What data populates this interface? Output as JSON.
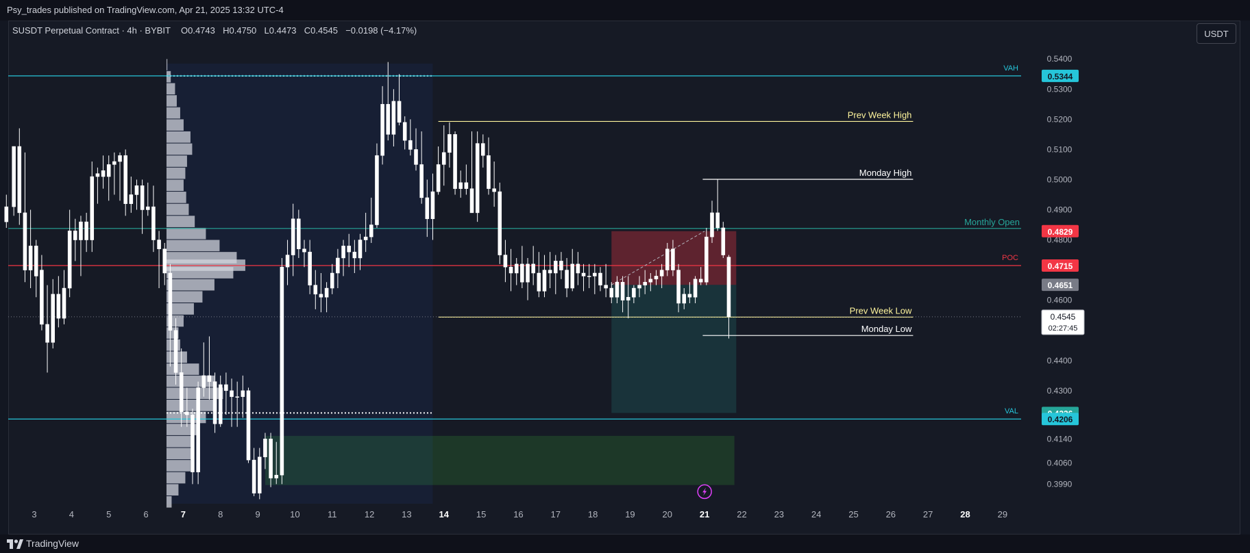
{
  "header": {
    "publish_line": "Psy_trades published on TradingView.com, Apr 21, 2025 13:32 UTC-4"
  },
  "legend": {
    "symbol": "SUSDT Perpetual Contract · 4h · BYBIT",
    "o_label": "O",
    "o_value": "0.4743",
    "h_label": "H",
    "h_value": "0.4750",
    "l_label": "L",
    "l_value": "0.4473",
    "c_label": "C",
    "c_value": "0.4545",
    "change": "−0.0198 (−4.17%)"
  },
  "toolbar": {
    "unit_label": "USDT"
  },
  "footer": {
    "brand": "TradingView"
  },
  "colors": {
    "background": "#161a25",
    "candle_up": "#ffffff",
    "candle_down": "#ffffff",
    "value_area_line": "#26c6da",
    "poc_line": "#f23645",
    "monthly_open_line": "#26a69a",
    "prev_week_line": "#fff59d",
    "stop_zone": "#f23645",
    "target_zone": "#26a69a",
    "demand_zone": "#2e7d32"
  },
  "chart_data": {
    "type": "candlestick",
    "symbol": "SUSDT Perpetual Contract",
    "timeframe": "4h",
    "exchange": "BYBIT",
    "y_axis": {
      "ticks": [
        "0.5400",
        "0.5300",
        "0.5200",
        "0.5100",
        "0.5000",
        "0.4900",
        "0.4800",
        "0.4600",
        "0.4400",
        "0.4300",
        "0.4140",
        "0.4060",
        "0.3990"
      ],
      "range": [
        0.3925,
        0.5455
      ]
    },
    "x_axis": {
      "ticks": [
        "3",
        "4",
        "5",
        "6",
        "7",
        "8",
        "9",
        "10",
        "11",
        "12",
        "13",
        "14",
        "15",
        "16",
        "17",
        "18",
        "19",
        "20",
        "21",
        "22",
        "23",
        "24",
        "25",
        "26",
        "27",
        "28",
        "29"
      ],
      "bold_ticks": [
        "7",
        "14",
        "21",
        "28"
      ],
      "range": [
        2.3,
        29.5
      ]
    },
    "price_labels": [
      {
        "value": "0.5344",
        "color": "#26c6da",
        "text_color": "#131722"
      },
      {
        "value": "0.4829",
        "color": "#f23645",
        "text_color": "#ffffff"
      },
      {
        "value": "0.4715",
        "color": "#f23645",
        "text_color": "#ffffff"
      },
      {
        "value": "0.4651",
        "color": "#787b86",
        "text_color": "#ffffff"
      },
      {
        "value": "0.4226",
        "color": "#26a69a",
        "text_color": "#ffffff"
      },
      {
        "value": "0.4206",
        "color": "#26c6da",
        "text_color": "#131722"
      }
    ],
    "last_price": {
      "value": "0.4545",
      "countdown": "02:27:45",
      "numeric": 0.4545
    },
    "levels": [
      {
        "name": "VAH",
        "price": 0.5344,
        "label": "VAH",
        "color": "#26c6da",
        "style": "solid",
        "x_from": 2.3,
        "x_to": 29.5,
        "label_side": "axis"
      },
      {
        "name": "VAL",
        "price": 0.4206,
        "label": "VAL",
        "color": "#26c6da",
        "style": "solid",
        "x_from": 2.3,
        "x_to": 29.5,
        "label_side": "axis"
      },
      {
        "name": "POC",
        "price": 0.4715,
        "label": "POC",
        "color": "#f23645",
        "style": "solid",
        "x_from": 2.3,
        "x_to": 29.5,
        "label_side": "axis"
      },
      {
        "name": "Monthly Open",
        "price": 0.4838,
        "label": "Monthly Open",
        "color": "#26a69a",
        "style": "solid",
        "x_from": 2.3,
        "x_to": 29.5,
        "label_side": "text"
      },
      {
        "name": "Prev Week High",
        "price": 0.5193,
        "label": "Prev Week High",
        "color": "#fff59d",
        "style": "solid",
        "x_from": 13.85,
        "x_to": 26.6,
        "label_side": "text"
      },
      {
        "name": "Prev Week Low",
        "price": 0.4544,
        "label": "Prev Week Low",
        "color": "#fff59d",
        "style": "solid",
        "x_from": 13.85,
        "x_to": 26.6,
        "label_side": "text"
      },
      {
        "name": "Monday High",
        "price": 0.5001,
        "label": "Monday High",
        "color": "#ffffff",
        "style": "solid",
        "x_from": 20.95,
        "x_to": 26.6,
        "label_side": "text"
      },
      {
        "name": "Monday Low",
        "price": 0.4483,
        "label": "Monday Low",
        "color": "#ffffff",
        "style": "solid",
        "x_from": 20.95,
        "x_to": 26.6,
        "label_side": "text"
      },
      {
        "name": "Last",
        "price": 0.4545,
        "label": "",
        "color": "#787b86",
        "style": "dotted",
        "x_from": 2.3,
        "x_to": 29.5,
        "label_side": "none"
      }
    ],
    "zones": [
      {
        "name": "stop",
        "from_x": 18.5,
        "to_x": 21.85,
        "from_y": 0.4651,
        "to_y": 0.4829,
        "color": "#f23645",
        "opacity": 0.33
      },
      {
        "name": "target",
        "from_x": 18.5,
        "to_x": 21.85,
        "from_y": 0.4226,
        "to_y": 0.4651,
        "color": "#26a69a",
        "opacity": 0.18
      },
      {
        "name": "demand",
        "from_x": 9.2,
        "to_x": 21.8,
        "from_y": 0.3987,
        "to_y": 0.415,
        "color": "#2e7d32",
        "opacity": 0.3
      },
      {
        "name": "volume-profile-range",
        "from_x": 6.55,
        "to_x": 13.7,
        "from_y": 0.3925,
        "to_y": 0.5385,
        "color": "#2962ff",
        "opacity": 0.07
      }
    ],
    "candles": [
      [
        2.25,
        0.486,
        0.495,
        0.484,
        0.491
      ],
      [
        2.45,
        0.491,
        0.511,
        0.488,
        0.511
      ],
      [
        2.6,
        0.511,
        0.517,
        0.485,
        0.489
      ],
      [
        2.75,
        0.489,
        0.509,
        0.466,
        0.47
      ],
      [
        2.9,
        0.47,
        0.49,
        0.464,
        0.478
      ],
      [
        3.05,
        0.478,
        0.48,
        0.461,
        0.468
      ],
      [
        3.2,
        0.47,
        0.475,
        0.45,
        0.452
      ],
      [
        3.35,
        0.452,
        0.465,
        0.436,
        0.446
      ],
      [
        3.5,
        0.446,
        0.467,
        0.444,
        0.462
      ],
      [
        3.65,
        0.462,
        0.468,
        0.451,
        0.454
      ],
      [
        3.8,
        0.454,
        0.47,
        0.452,
        0.464
      ],
      [
        3.95,
        0.464,
        0.49,
        0.461,
        0.483
      ],
      [
        4.1,
        0.483,
        0.487,
        0.473,
        0.48
      ],
      [
        4.25,
        0.48,
        0.488,
        0.468,
        0.486
      ],
      [
        4.4,
        0.486,
        0.489,
        0.476,
        0.48
      ],
      [
        4.55,
        0.48,
        0.506,
        0.476,
        0.501
      ],
      [
        4.7,
        0.501,
        0.504,
        0.492,
        0.502
      ],
      [
        4.85,
        0.503,
        0.508,
        0.497,
        0.501
      ],
      [
        5.0,
        0.501,
        0.508,
        0.493,
        0.505
      ],
      [
        5.15,
        0.505,
        0.509,
        0.495,
        0.506
      ],
      [
        5.3,
        0.506,
        0.509,
        0.493,
        0.508
      ],
      [
        5.45,
        0.508,
        0.51,
        0.488,
        0.492
      ],
      [
        5.6,
        0.492,
        0.501,
        0.489,
        0.495
      ],
      [
        5.75,
        0.495,
        0.5,
        0.49,
        0.498
      ],
      [
        5.9,
        0.498,
        0.5,
        0.482,
        0.49
      ],
      [
        6.05,
        0.49,
        0.499,
        0.488,
        0.491
      ],
      [
        6.2,
        0.491,
        0.498,
        0.476,
        0.48
      ],
      [
        6.35,
        0.48,
        0.483,
        0.464,
        0.477
      ],
      [
        6.5,
        0.477,
        0.479,
        0.465,
        0.469
      ],
      [
        6.65,
        0.469,
        0.472,
        0.438,
        0.45
      ],
      [
        6.8,
        0.45,
        0.454,
        0.432,
        0.436
      ],
      [
        6.95,
        0.436,
        0.444,
        0.418,
        0.423
      ],
      [
        7.1,
        0.423,
        0.431,
        0.418,
        0.422
      ],
      [
        7.25,
        0.422,
        0.424,
        0.399,
        0.403
      ],
      [
        7.4,
        0.403,
        0.433,
        0.399,
        0.431
      ],
      [
        7.55,
        0.431,
        0.446,
        0.428,
        0.435
      ],
      [
        7.7,
        0.435,
        0.448,
        0.427,
        0.433
      ],
      [
        7.85,
        0.433,
        0.436,
        0.416,
        0.419
      ],
      [
        8.0,
        0.419,
        0.435,
        0.418,
        0.432
      ],
      [
        8.15,
        0.432,
        0.436,
        0.422,
        0.43
      ],
      [
        8.3,
        0.43,
        0.434,
        0.418,
        0.428
      ],
      [
        8.45,
        0.428,
        0.433,
        0.418,
        0.428
      ],
      [
        8.6,
        0.428,
        0.435,
        0.421,
        0.43
      ],
      [
        8.75,
        0.43,
        0.431,
        0.406,
        0.407
      ],
      [
        8.9,
        0.407,
        0.411,
        0.395,
        0.396
      ],
      [
        9.05,
        0.396,
        0.411,
        0.394,
        0.408
      ],
      [
        9.2,
        0.408,
        0.416,
        0.404,
        0.414
      ],
      [
        9.35,
        0.414,
        0.416,
        0.398,
        0.401
      ],
      [
        9.5,
        0.401,
        0.413,
        0.399,
        0.402
      ],
      [
        9.65,
        0.402,
        0.474,
        0.399,
        0.471
      ],
      [
        9.8,
        0.471,
        0.48,
        0.465,
        0.475
      ],
      [
        9.95,
        0.475,
        0.492,
        0.468,
        0.487
      ],
      [
        10.1,
        0.487,
        0.49,
        0.474,
        0.477
      ],
      [
        10.25,
        0.477,
        0.48,
        0.471,
        0.476
      ],
      [
        10.4,
        0.476,
        0.48,
        0.462,
        0.465
      ],
      [
        10.55,
        0.465,
        0.47,
        0.457,
        0.462
      ],
      [
        10.7,
        0.462,
        0.469,
        0.456,
        0.461
      ],
      [
        10.85,
        0.461,
        0.466,
        0.456,
        0.464
      ],
      [
        11.0,
        0.464,
        0.472,
        0.462,
        0.469
      ],
      [
        11.15,
        0.469,
        0.477,
        0.464,
        0.474
      ],
      [
        11.3,
        0.474,
        0.48,
        0.468,
        0.478
      ],
      [
        11.45,
        0.478,
        0.482,
        0.471,
        0.476
      ],
      [
        11.6,
        0.476,
        0.48,
        0.469,
        0.474
      ],
      [
        11.75,
        0.474,
        0.482,
        0.47,
        0.48
      ],
      [
        11.9,
        0.48,
        0.489,
        0.476,
        0.481
      ],
      [
        12.05,
        0.481,
        0.494,
        0.479,
        0.485
      ],
      [
        12.2,
        0.485,
        0.512,
        0.484,
        0.508
      ],
      [
        12.35,
        0.508,
        0.531,
        0.505,
        0.525
      ],
      [
        12.5,
        0.525,
        0.539,
        0.513,
        0.515
      ],
      [
        12.65,
        0.515,
        0.53,
        0.511,
        0.526
      ],
      [
        12.8,
        0.526,
        0.535,
        0.518,
        0.519
      ],
      [
        12.95,
        0.519,
        0.521,
        0.51,
        0.513
      ],
      [
        13.1,
        0.513,
        0.52,
        0.508,
        0.51
      ],
      [
        13.25,
        0.51,
        0.517,
        0.503,
        0.505
      ],
      [
        13.4,
        0.505,
        0.516,
        0.492,
        0.494
      ],
      [
        13.55,
        0.494,
        0.5,
        0.481,
        0.487
      ],
      [
        13.7,
        0.487,
        0.502,
        0.48,
        0.496
      ],
      [
        13.85,
        0.496,
        0.511,
        0.495,
        0.505
      ],
      [
        14.0,
        0.505,
        0.518,
        0.498,
        0.509
      ],
      [
        14.15,
        0.509,
        0.519,
        0.504,
        0.515
      ],
      [
        14.3,
        0.515,
        0.516,
        0.495,
        0.497
      ],
      [
        14.45,
        0.497,
        0.503,
        0.494,
        0.499
      ],
      [
        14.6,
        0.499,
        0.505,
        0.495,
        0.497
      ],
      [
        14.75,
        0.497,
        0.516,
        0.489,
        0.489
      ],
      [
        14.9,
        0.489,
        0.516,
        0.486,
        0.512
      ],
      [
        15.05,
        0.512,
        0.515,
        0.504,
        0.508
      ],
      [
        15.2,
        0.508,
        0.514,
        0.495,
        0.497
      ],
      [
        15.35,
        0.497,
        0.506,
        0.491,
        0.496
      ],
      [
        15.5,
        0.496,
        0.499,
        0.472,
        0.475
      ],
      [
        15.65,
        0.475,
        0.48,
        0.466,
        0.471
      ],
      [
        15.8,
        0.471,
        0.477,
        0.463,
        0.469
      ],
      [
        15.95,
        0.469,
        0.474,
        0.465,
        0.472
      ],
      [
        16.1,
        0.472,
        0.478,
        0.464,
        0.466
      ],
      [
        16.25,
        0.466,
        0.474,
        0.46,
        0.472
      ],
      [
        16.4,
        0.472,
        0.478,
        0.465,
        0.469
      ],
      [
        16.55,
        0.469,
        0.476,
        0.461,
        0.463
      ],
      [
        16.7,
        0.463,
        0.475,
        0.461,
        0.47
      ],
      [
        16.85,
        0.47,
        0.476,
        0.464,
        0.469
      ],
      [
        17.0,
        0.469,
        0.475,
        0.462,
        0.473
      ],
      [
        17.15,
        0.473,
        0.476,
        0.467,
        0.47
      ],
      [
        17.3,
        0.47,
        0.474,
        0.461,
        0.464
      ],
      [
        17.45,
        0.464,
        0.477,
        0.463,
        0.472
      ],
      [
        17.6,
        0.472,
        0.476,
        0.465,
        0.469
      ],
      [
        17.75,
        0.469,
        0.472,
        0.463,
        0.468
      ],
      [
        17.9,
        0.468,
        0.472,
        0.464,
        0.468
      ],
      [
        18.05,
        0.468,
        0.472,
        0.462,
        0.469
      ],
      [
        18.2,
        0.469,
        0.471,
        0.463,
        0.465
      ],
      [
        18.35,
        0.465,
        0.472,
        0.461,
        0.464
      ],
      [
        18.5,
        0.464,
        0.466,
        0.459,
        0.461
      ],
      [
        18.65,
        0.461,
        0.468,
        0.459,
        0.466
      ],
      [
        18.8,
        0.466,
        0.468,
        0.456,
        0.46
      ],
      [
        18.95,
        0.46,
        0.468,
        0.454,
        0.461
      ],
      [
        19.1,
        0.461,
        0.465,
        0.459,
        0.464
      ],
      [
        19.25,
        0.464,
        0.468,
        0.461,
        0.465
      ],
      [
        19.4,
        0.465,
        0.47,
        0.462,
        0.466
      ],
      [
        19.55,
        0.466,
        0.469,
        0.463,
        0.467
      ],
      [
        19.7,
        0.467,
        0.47,
        0.465,
        0.468
      ],
      [
        19.85,
        0.468,
        0.472,
        0.464,
        0.47
      ],
      [
        20.0,
        0.47,
        0.479,
        0.468,
        0.477
      ],
      [
        20.15,
        0.477,
        0.48,
        0.468,
        0.47
      ],
      [
        20.3,
        0.47,
        0.472,
        0.456,
        0.459
      ],
      [
        20.45,
        0.459,
        0.464,
        0.457,
        0.462
      ],
      [
        20.6,
        0.462,
        0.466,
        0.459,
        0.461
      ],
      [
        20.75,
        0.461,
        0.468,
        0.459,
        0.467
      ],
      [
        20.9,
        0.467,
        0.471,
        0.465,
        0.466
      ],
      [
        21.05,
        0.466,
        0.484,
        0.465,
        0.481
      ],
      [
        21.2,
        0.481,
        0.493,
        0.479,
        0.489
      ],
      [
        21.35,
        0.489,
        0.5,
        0.483,
        0.484
      ],
      [
        21.5,
        0.484,
        0.486,
        0.474,
        0.475
      ],
      [
        21.65,
        0.4743,
        0.475,
        0.4473,
        0.4545
      ]
    ],
    "volume_profile": {
      "x_left": 6.55,
      "max_width_days": 2.3,
      "bins": [
        [
          0.538,
          0.01
        ],
        [
          0.534,
          0.05
        ],
        [
          0.53,
          0.1
        ],
        [
          0.526,
          0.12
        ],
        [
          0.522,
          0.16
        ],
        [
          0.518,
          0.2
        ],
        [
          0.514,
          0.28
        ],
        [
          0.51,
          0.3
        ],
        [
          0.506,
          0.24
        ],
        [
          0.502,
          0.22
        ],
        [
          0.498,
          0.2
        ],
        [
          0.494,
          0.23
        ],
        [
          0.49,
          0.26
        ],
        [
          0.486,
          0.33
        ],
        [
          0.482,
          0.46
        ],
        [
          0.478,
          0.62
        ],
        [
          0.474,
          0.82
        ],
        [
          0.4715,
          0.92
        ],
        [
          0.469,
          0.78
        ],
        [
          0.465,
          0.56
        ],
        [
          0.461,
          0.42
        ],
        [
          0.457,
          0.32
        ],
        [
          0.453,
          0.2
        ],
        [
          0.449,
          0.14
        ],
        [
          0.445,
          0.16
        ],
        [
          0.441,
          0.24
        ],
        [
          0.437,
          0.38
        ],
        [
          0.433,
          0.56
        ],
        [
          0.429,
          0.66
        ],
        [
          0.425,
          0.58
        ],
        [
          0.421,
          0.46
        ],
        [
          0.417,
          0.38
        ],
        [
          0.413,
          0.32
        ],
        [
          0.409,
          0.3
        ],
        [
          0.405,
          0.28
        ],
        [
          0.401,
          0.22
        ],
        [
          0.397,
          0.14
        ],
        [
          0.393,
          0.06
        ]
      ]
    },
    "dotted_levels": [
      {
        "price": 0.5344,
        "x_from": 6.55,
        "x_to": 13.7
      },
      {
        "price": 0.4226,
        "x_from": 6.55,
        "x_to": 13.7
      }
    ],
    "projection_line": {
      "from_x": 18.5,
      "from_y": 0.4651,
      "to_x": 21.0,
      "to_y": 0.4829
    },
    "marker_icon": {
      "name": "lightning-icon",
      "x": 21.0,
      "y": 0.3965
    }
  }
}
